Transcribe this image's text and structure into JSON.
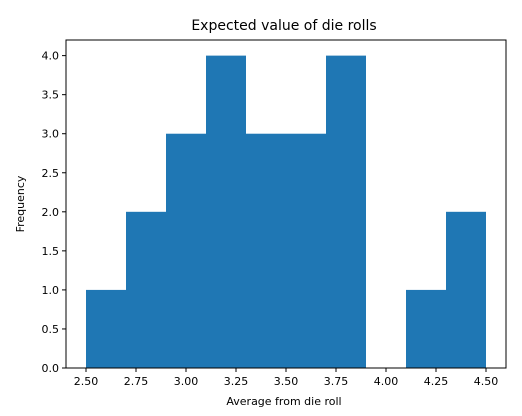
{
  "chart_data": {
    "type": "bar",
    "subtype": "histogram",
    "title": "Expected value of die rolls",
    "xlabel": "Average from die roll",
    "ylabel": "Frequency",
    "bins": [
      {
        "start": 2.5,
        "end": 2.7,
        "value": 1
      },
      {
        "start": 2.7,
        "end": 2.9,
        "value": 2
      },
      {
        "start": 2.9,
        "end": 3.1,
        "value": 3
      },
      {
        "start": 3.1,
        "end": 3.3,
        "value": 4
      },
      {
        "start": 3.3,
        "end": 3.5,
        "value": 3
      },
      {
        "start": 3.5,
        "end": 3.7,
        "value": 3
      },
      {
        "start": 3.7,
        "end": 3.9,
        "value": 4
      },
      {
        "start": 3.9,
        "end": 4.1,
        "value": 0
      },
      {
        "start": 4.1,
        "end": 4.3,
        "value": 1
      },
      {
        "start": 4.3,
        "end": 4.5,
        "value": 2
      }
    ],
    "xlim": [
      2.4,
      4.6
    ],
    "ylim": [
      0,
      4.2
    ],
    "xticks": [
      "2.50",
      "2.75",
      "3.00",
      "3.25",
      "3.50",
      "3.75",
      "4.00",
      "4.25",
      "4.50"
    ],
    "xtick_values": [
      2.5,
      2.75,
      3.0,
      3.25,
      3.5,
      3.75,
      4.0,
      4.25,
      4.5
    ],
    "yticks": [
      "0.0",
      "0.5",
      "1.0",
      "1.5",
      "2.0",
      "2.5",
      "3.0",
      "3.5",
      "4.0"
    ],
    "ytick_values": [
      0,
      0.5,
      1.0,
      1.5,
      2.0,
      2.5,
      3.0,
      3.5,
      4.0
    ],
    "bar_color": "#1f77b4",
    "grid": false,
    "legend": "none"
  }
}
